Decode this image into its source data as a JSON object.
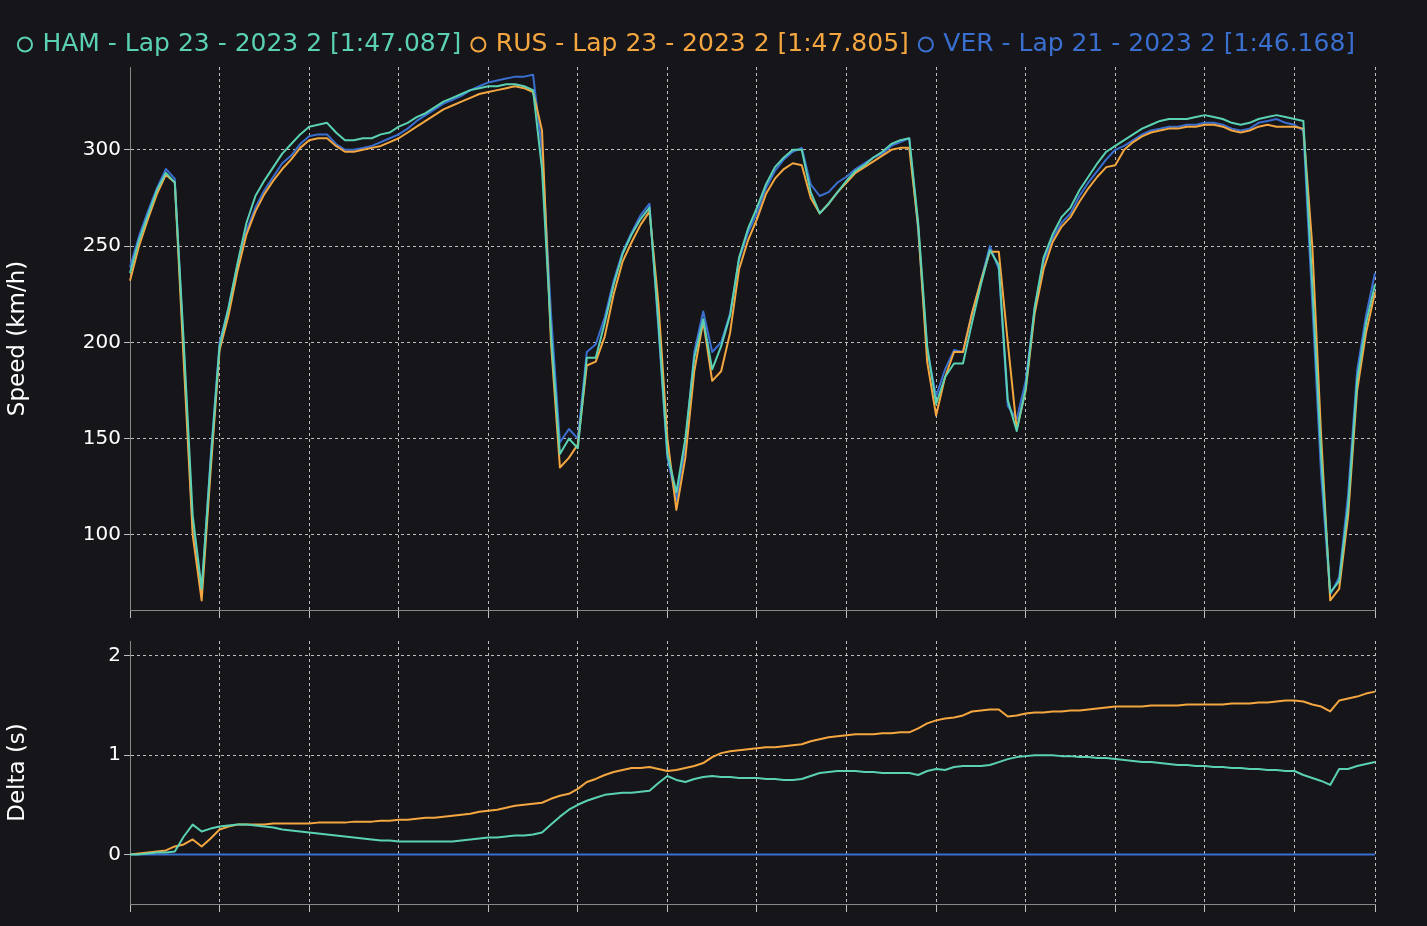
{
  "chart_data": [
    {
      "type": "line",
      "ylabel": "Speed (km/h)",
      "ylim": [
        61,
        343
      ],
      "yticks": [
        100,
        150,
        200,
        250,
        300
      ],
      "grid": true,
      "legend": "top",
      "marker": "none",
      "tick_labels": "y",
      "categories": [
        null,
        null,
        null,
        null,
        null,
        null,
        null,
        null,
        null,
        null,
        null,
        null,
        null,
        null,
        null,
        null,
        null,
        null,
        null,
        null,
        null,
        null,
        null,
        null,
        null,
        null,
        null,
        null,
        null,
        null,
        null,
        null,
        null,
        null,
        null,
        null,
        null,
        null,
        null,
        null,
        null,
        null,
        null,
        null,
        null,
        null,
        null,
        null,
        null,
        null,
        null,
        null,
        null,
        null,
        null,
        null,
        null,
        null,
        null,
        null,
        null,
        null,
        null,
        null,
        null,
        null,
        null,
        null,
        null,
        null,
        null,
        null,
        null,
        null,
        null,
        null,
        null,
        null,
        null,
        null,
        null,
        null,
        null,
        null,
        null,
        null,
        null,
        null,
        null,
        null,
        null,
        null,
        null,
        null,
        null,
        null,
        null,
        null,
        null,
        null,
        null,
        null,
        null,
        null,
        null,
        null,
        null,
        null,
        null,
        null,
        null,
        null,
        null,
        null,
        null,
        null,
        null,
        null,
        null,
        null,
        null,
        null,
        null,
        null,
        null,
        null,
        null,
        null,
        null,
        null,
        null,
        null,
        null,
        null,
        null,
        null,
        null,
        null,
        null,
        null
      ],
      "series": [
        {
          "name": "HAM - Lap 23 - 2023 2 [1:47.087]",
          "color": "#5bd1b3",
          "values": [
            236,
            253,
            266,
            279,
            288,
            283,
            200,
            110,
            72,
            138,
            198,
            218,
            241,
            262,
            276,
            284,
            291,
            298,
            303,
            308,
            312,
            313,
            314,
            309,
            305,
            305,
            306,
            306,
            308,
            309,
            312,
            314,
            317,
            319,
            322,
            325,
            327,
            329,
            331,
            332,
            333,
            333,
            334,
            334,
            333,
            331,
            290,
            205,
            142,
            150,
            145,
            192,
            192,
            210,
            230,
            246,
            256,
            264,
            270,
            210,
            142,
            122,
            150,
            192,
            212,
            186,
            198,
            214,
            244,
            259,
            270,
            282,
            291,
            296,
            300,
            300,
            278,
            267,
            272,
            278,
            284,
            289,
            292,
            296,
            299,
            303,
            305,
            306,
            262,
            198,
            168,
            182,
            189,
            189,
            210,
            230,
            248,
            240,
            170,
            154,
            176,
            218,
            244,
            256,
            265,
            270,
            279,
            286,
            293,
            299,
            302,
            305,
            308,
            311,
            313,
            315,
            316,
            316,
            316,
            317,
            318,
            317,
            316,
            314,
            313,
            314,
            316,
            317,
            318,
            317,
            316,
            315,
            230,
            140,
            70,
            76,
            115,
            180,
            210,
            230
          ]
        },
        {
          "name": "RUS - Lap 23 - 2023 2 [1:47.805]",
          "color": "#f4a640",
          "values": [
            232,
            250,
            264,
            277,
            287,
            283,
            190,
            100,
            66,
            133,
            196,
            214,
            237,
            256,
            268,
            277,
            284,
            290,
            295,
            301,
            305,
            306,
            306,
            302,
            299,
            299,
            300,
            301,
            302,
            304,
            306,
            309,
            312,
            315,
            318,
            321,
            323,
            325,
            327,
            329,
            330,
            331,
            332,
            333,
            332,
            330,
            310,
            200,
            135,
            140,
            147,
            188,
            190,
            203,
            225,
            242,
            252,
            261,
            268,
            220,
            150,
            113,
            140,
            185,
            211,
            180,
            185,
            205,
            238,
            253,
            264,
            277,
            285,
            290,
            293,
            292,
            275,
            267,
            272,
            278,
            283,
            288,
            291,
            294,
            297,
            300,
            301,
            301,
            260,
            190,
            162,
            182,
            195,
            195,
            215,
            232,
            247,
            247,
            200,
            155,
            175,
            215,
            238,
            252,
            260,
            265,
            273,
            280,
            286,
            291,
            292,
            300,
            304,
            307,
            309,
            310,
            311,
            311,
            312,
            312,
            313,
            313,
            312,
            310,
            309,
            310,
            312,
            313,
            312,
            312,
            312,
            311,
            250,
            150,
            66,
            72,
            110,
            175,
            205,
            226
          ]
        },
        {
          "name": "VER - Lap 21 - 2023 2 [1:46.168]",
          "color": "#3a6fd0",
          "values": [
            239,
            255,
            268,
            280,
            290,
            285,
            196,
            103,
            70,
            140,
            200,
            218,
            240,
            258,
            270,
            279,
            286,
            293,
            297,
            303,
            307,
            308,
            308,
            303,
            300,
            300,
            301,
            302,
            304,
            306,
            308,
            311,
            315,
            318,
            321,
            324,
            326,
            328,
            331,
            333,
            335,
            336,
            337,
            338,
            338,
            339,
            300,
            215,
            148,
            155,
            150,
            195,
            199,
            213,
            232,
            247,
            257,
            266,
            272,
            207,
            140,
            118,
            146,
            195,
            216,
            195,
            200,
            215,
            243,
            257,
            267,
            280,
            289,
            295,
            299,
            301,
            282,
            276,
            278,
            283,
            286,
            290,
            293,
            296,
            298,
            302,
            304,
            306,
            258,
            196,
            172,
            186,
            196,
            195,
            215,
            232,
            250,
            238,
            167,
            160,
            180,
            218,
            242,
            254,
            262,
            267,
            276,
            283,
            289,
            295,
            300,
            302,
            305,
            308,
            310,
            311,
            312,
            312,
            313,
            313,
            314,
            314,
            313,
            311,
            310,
            311,
            314,
            315,
            316,
            314,
            313,
            310,
            220,
            130,
            69,
            78,
            121,
            185,
            214,
            236
          ]
        }
      ]
    },
    {
      "type": "line",
      "ylabel": "Delta (s)",
      "ylim": [
        -0.5,
        2.15
      ],
      "yticks": [
        0,
        1,
        2
      ],
      "grid": true,
      "marker": "none",
      "tick_labels": "y",
      "categories": [
        null,
        null,
        null,
        null,
        null,
        null,
        null,
        null,
        null,
        null,
        null,
        null,
        null,
        null,
        null,
        null,
        null,
        null,
        null,
        null,
        null,
        null,
        null,
        null,
        null,
        null,
        null,
        null,
        null,
        null,
        null,
        null,
        null,
        null,
        null,
        null,
        null,
        null,
        null,
        null,
        null,
        null,
        null,
        null,
        null,
        null,
        null,
        null,
        null,
        null,
        null,
        null,
        null,
        null,
        null,
        null,
        null,
        null,
        null,
        null,
        null,
        null,
        null,
        null,
        null,
        null,
        null,
        null,
        null,
        null,
        null,
        null,
        null,
        null,
        null,
        null,
        null,
        null,
        null,
        null,
        null,
        null,
        null,
        null,
        null,
        null,
        null,
        null,
        null,
        null,
        null,
        null,
        null,
        null,
        null,
        null,
        null,
        null,
        null,
        null,
        null,
        null,
        null,
        null,
        null,
        null,
        null,
        null,
        null,
        null,
        null,
        null,
        null,
        null,
        null,
        null,
        null,
        null,
        null,
        null,
        null,
        null,
        null,
        null,
        null,
        null,
        null,
        null,
        null,
        null,
        null,
        null,
        null,
        null,
        null,
        null,
        null,
        null,
        null,
        null
      ],
      "series": [
        {
          "color": "#5bd1b3",
          "values": [
            0,
            0,
            0.01,
            0.02,
            0.02,
            0.03,
            0.18,
            0.3,
            0.23,
            0.26,
            0.28,
            0.29,
            0.3,
            0.3,
            0.29,
            0.28,
            0.27,
            0.25,
            0.24,
            0.23,
            0.22,
            0.21,
            0.2,
            0.19,
            0.18,
            0.17,
            0.16,
            0.15,
            0.14,
            0.14,
            0.13,
            0.13,
            0.13,
            0.13,
            0.13,
            0.13,
            0.13,
            0.14,
            0.15,
            0.16,
            0.17,
            0.17,
            0.18,
            0.19,
            0.19,
            0.2,
            0.22,
            0.3,
            0.38,
            0.45,
            0.5,
            0.54,
            0.57,
            0.6,
            0.61,
            0.62,
            0.62,
            0.63,
            0.64,
            0.72,
            0.79,
            0.75,
            0.73,
            0.76,
            0.78,
            0.79,
            0.78,
            0.78,
            0.77,
            0.77,
            0.77,
            0.76,
            0.76,
            0.75,
            0.75,
            0.76,
            0.79,
            0.82,
            0.83,
            0.84,
            0.84,
            0.84,
            0.83,
            0.83,
            0.82,
            0.82,
            0.82,
            0.82,
            0.8,
            0.84,
            0.86,
            0.85,
            0.88,
            0.89,
            0.89,
            0.89,
            0.9,
            0.93,
            0.96,
            0.98,
            0.99,
            1.0,
            1.0,
            1.0,
            0.99,
            0.99,
            0.98,
            0.98,
            0.97,
            0.97,
            0.96,
            0.95,
            0.94,
            0.93,
            0.93,
            0.92,
            0.91,
            0.9,
            0.9,
            0.89,
            0.89,
            0.88,
            0.88,
            0.87,
            0.87,
            0.86,
            0.86,
            0.85,
            0.85,
            0.84,
            0.84,
            0.8,
            0.77,
            0.74,
            0.7,
            0.86,
            0.86,
            0.89,
            0.91,
            0.93
          ]
        },
        {
          "color": "#f4a640",
          "values": [
            0,
            0.01,
            0.02,
            0.03,
            0.04,
            0.08,
            0.1,
            0.15,
            0.08,
            0.16,
            0.25,
            0.28,
            0.3,
            0.3,
            0.3,
            0.3,
            0.31,
            0.31,
            0.31,
            0.31,
            0.31,
            0.32,
            0.32,
            0.32,
            0.32,
            0.33,
            0.33,
            0.33,
            0.34,
            0.34,
            0.35,
            0.35,
            0.36,
            0.37,
            0.37,
            0.38,
            0.39,
            0.4,
            0.41,
            0.43,
            0.44,
            0.45,
            0.47,
            0.49,
            0.5,
            0.51,
            0.52,
            0.56,
            0.59,
            0.61,
            0.66,
            0.73,
            0.76,
            0.8,
            0.83,
            0.85,
            0.87,
            0.87,
            0.88,
            0.86,
            0.84,
            0.85,
            0.87,
            0.89,
            0.92,
            0.98,
            1.02,
            1.04,
            1.05,
            1.06,
            1.07,
            1.08,
            1.08,
            1.09,
            1.1,
            1.11,
            1.14,
            1.16,
            1.18,
            1.19,
            1.2,
            1.21,
            1.21,
            1.21,
            1.22,
            1.22,
            1.23,
            1.23,
            1.27,
            1.32,
            1.35,
            1.37,
            1.38,
            1.4,
            1.44,
            1.45,
            1.46,
            1.46,
            1.39,
            1.4,
            1.42,
            1.43,
            1.43,
            1.44,
            1.44,
            1.45,
            1.45,
            1.46,
            1.47,
            1.48,
            1.49,
            1.49,
            1.49,
            1.49,
            1.5,
            1.5,
            1.5,
            1.5,
            1.51,
            1.51,
            1.51,
            1.51,
            1.51,
            1.52,
            1.52,
            1.52,
            1.53,
            1.53,
            1.54,
            1.55,
            1.55,
            1.54,
            1.51,
            1.49,
            1.44,
            1.55,
            1.57,
            1.59,
            1.62,
            1.64
          ]
        },
        {
          "color": "#3a6fd0",
          "values": [
            0,
            0,
            0,
            0,
            0,
            0,
            0,
            0,
            0,
            0,
            0,
            0,
            0,
            0,
            0,
            0,
            0,
            0,
            0,
            0,
            0,
            0,
            0,
            0,
            0,
            0,
            0,
            0,
            0,
            0,
            0,
            0,
            0,
            0,
            0,
            0,
            0,
            0,
            0,
            0,
            0,
            0,
            0,
            0,
            0,
            0,
            0,
            0,
            0,
            0,
            0,
            0,
            0,
            0,
            0,
            0,
            0,
            0,
            0,
            0,
            0,
            0,
            0,
            0,
            0,
            0,
            0,
            0,
            0,
            0,
            0,
            0,
            0,
            0,
            0,
            0,
            0,
            0,
            0,
            0,
            0,
            0,
            0,
            0,
            0,
            0,
            0,
            0,
            0,
            0,
            0,
            0,
            0,
            0,
            0,
            0,
            0,
            0,
            0,
            0,
            0,
            0,
            0,
            0,
            0,
            0,
            0,
            0,
            0,
            0,
            0,
            0,
            0,
            0,
            0,
            0,
            0,
            0,
            0,
            0,
            0,
            0,
            0,
            0,
            0,
            0,
            0,
            0,
            0,
            0,
            0,
            0,
            0,
            0,
            0,
            0,
            0,
            0,
            0,
            0
          ]
        }
      ]
    }
  ]
}
